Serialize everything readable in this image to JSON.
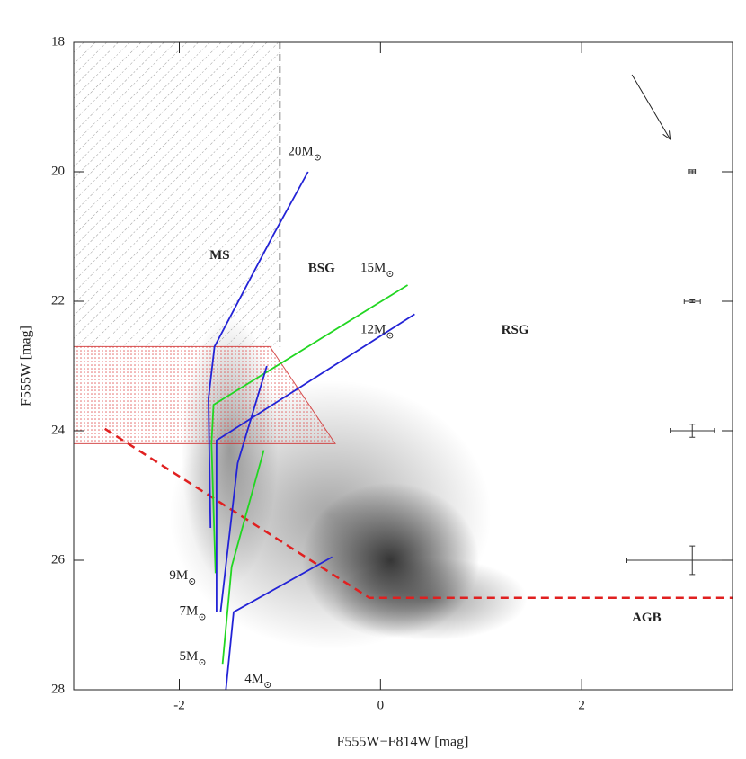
{
  "chart_data": {
    "type": "cmd",
    "x_label": "F555W−F814W [mag]",
    "y_label": "F555W [mag]",
    "xlim": [
      -3.05,
      3.5
    ],
    "ylim": [
      18,
      28
    ],
    "y_inverted": true,
    "xticks": [
      -2,
      0,
      2
    ],
    "yticks": [
      18,
      20,
      22,
      24,
      26,
      28
    ],
    "star_cloud": [
      {
        "cx": -0.5,
        "cy": 25.3,
        "sx": 1.0,
        "sy": 1.3,
        "opacity": 0.35
      },
      {
        "cx": 0.1,
        "cy": 26.0,
        "sx": 0.55,
        "sy": 0.75,
        "opacity": 0.75
      },
      {
        "cx": -1.5,
        "cy": 24.3,
        "sx": 0.3,
        "sy": 1.3,
        "opacity": 0.35
      },
      {
        "cx": 0.5,
        "cy": 26.6,
        "sx": 0.6,
        "sy": 0.4,
        "opacity": 0.4
      }
    ],
    "hatched_region": {
      "x": [
        -3.05,
        -1.0,
        -1.0,
        -3.05
      ],
      "y": [
        18,
        18,
        22.7,
        22.7
      ]
    },
    "red_region": {
      "x": [
        -3.05,
        -1.1,
        -0.45,
        -3.05
      ],
      "y": [
        22.7,
        22.7,
        24.2,
        24.2
      ]
    },
    "bsg_boundary": {
      "x": [
        -1.0,
        -1.0
      ],
      "y": [
        18,
        22.7
      ]
    },
    "agb_boundary": {
      "x": [
        -2.74,
        -0.11,
        3.5
      ],
      "y": [
        23.97,
        26.58,
        26.58
      ]
    },
    "tracks": [
      {
        "color": "#2323d6",
        "x": [
          -0.72,
          -1.06,
          -1.65,
          -1.71,
          -1.69
        ],
        "y": [
          20.0,
          20.96,
          22.7,
          23.5,
          25.5
        ]
      },
      {
        "color": "#22d622",
        "x": [
          0.27,
          -1.66,
          -1.68,
          -1.64
        ],
        "y": [
          21.75,
          23.6,
          24.2,
          26.2
        ]
      },
      {
        "color": "#2323d6",
        "x": [
          0.34,
          -1.63,
          -1.63
        ],
        "y": [
          22.2,
          24.15,
          26.8
        ]
      },
      {
        "color": "#2323d6",
        "x": [
          -1.13,
          -1.42,
          -1.59
        ],
        "y": [
          23.0,
          24.5,
          26.8
        ]
      },
      {
        "color": "#22d622",
        "x": [
          -1.16,
          -1.48,
          -1.57
        ],
        "y": [
          24.3,
          26.1,
          27.6
        ]
      },
      {
        "color": "#2323d6",
        "x": [
          -0.48,
          -1.46,
          -1.54
        ],
        "y": [
          25.95,
          26.8,
          28.05
        ]
      }
    ],
    "mass_labels": [
      {
        "main": "20M",
        "sub": "⊙",
        "x": -0.92,
        "y": 19.7
      },
      {
        "main": "15M",
        "sub": "⊙",
        "x": -0.2,
        "y": 21.5
      },
      {
        "main": "12M",
        "sub": "⊙",
        "x": -0.2,
        "y": 22.45
      },
      {
        "main": "9M",
        "sub": "⊙",
        "x": -2.1,
        "y": 26.25
      },
      {
        "main": "7M",
        "sub": "⊙",
        "x": -2.0,
        "y": 26.8
      },
      {
        "main": "5M",
        "sub": "⊙",
        "x": -2.0,
        "y": 27.5
      },
      {
        "main": "4M",
        "sub": "⊙",
        "x": -1.35,
        "y": 27.85
      }
    ],
    "region_labels": [
      {
        "text": "MS",
        "x": -1.7,
        "y": 21.3
      },
      {
        "text": "BSG",
        "x": -0.72,
        "y": 21.5
      },
      {
        "text": "RSG",
        "x": 1.2,
        "y": 22.45
      },
      {
        "text": "AGB",
        "x": 2.5,
        "y": 26.9
      }
    ],
    "error_bars": {
      "x": [
        3.1,
        3.1,
        3.1,
        3.1
      ],
      "y": [
        20,
        22,
        24,
        26
      ],
      "xerr": [
        0.03,
        0.08,
        0.22,
        0.65
      ],
      "yerr": [
        0.03,
        0.02,
        0.1,
        0.22
      ]
    },
    "reddening_vector": {
      "x": [
        2.5,
        2.88
      ],
      "y": [
        18.5,
        19.5
      ]
    }
  }
}
